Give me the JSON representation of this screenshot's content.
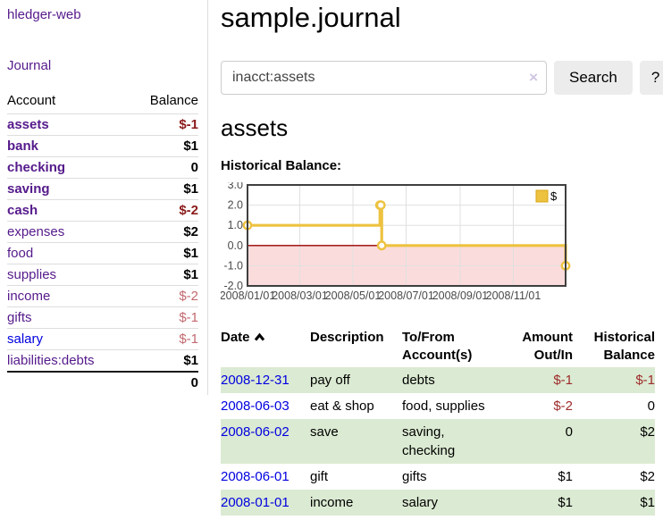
{
  "sidebar": {
    "brand": "hledger-web",
    "nav_journal": "Journal",
    "accounts": {
      "header_account": "Account",
      "header_balance": "Balance",
      "rows": [
        {
          "name": "assets",
          "depth": 1,
          "bold": true,
          "balance": "$-1",
          "balance_class": "neg-bold"
        },
        {
          "name": "bank",
          "depth": 2,
          "bold": true,
          "balance": "$1",
          "balance_class": "pos"
        },
        {
          "name": "checking",
          "depth": 3,
          "bold": true,
          "balance": "0",
          "balance_class": "pos"
        },
        {
          "name": "saving",
          "depth": 3,
          "bold": true,
          "balance": "$1",
          "balance_class": "pos"
        },
        {
          "name": "cash",
          "depth": 2,
          "bold": true,
          "balance": "$-2",
          "balance_class": "neg-bold"
        },
        {
          "name": "expenses",
          "depth": 1,
          "bold": false,
          "balance": "$2",
          "balance_class": "pos"
        },
        {
          "name": "food",
          "depth": 2,
          "bold": false,
          "balance": "$1",
          "balance_class": "pos"
        },
        {
          "name": "supplies",
          "depth": 2,
          "bold": false,
          "balance": "$1",
          "balance_class": "pos"
        },
        {
          "name": "income",
          "depth": 1,
          "bold": false,
          "balance": "$-2",
          "balance_class": "neg-soft"
        },
        {
          "name": "gifts",
          "depth": 2,
          "bold": false,
          "balance": "$-1",
          "balance_class": "neg-soft"
        },
        {
          "name": "salary",
          "depth": 2,
          "bold": false,
          "link_class": "blue",
          "balance": "$-1",
          "balance_class": "neg-soft"
        },
        {
          "name": "liabilities:debts",
          "depth": 1,
          "bold": false,
          "balance": "$1",
          "balance_class": "pos"
        }
      ],
      "total": "0"
    }
  },
  "main": {
    "title": "sample.journal",
    "search": {
      "value": "inacct:assets",
      "clear_label": "×",
      "button_label": "Search",
      "help_label": "?"
    },
    "account_heading": "assets",
    "chart_heading": "Historical Balance:",
    "register": {
      "headers": {
        "date": "Date",
        "description": "Description",
        "accounts": "To/From Account(s)",
        "amount": "Amount Out/In",
        "balance": "Historical Balance"
      },
      "rows": [
        {
          "date": "2008-12-31",
          "description": "pay off",
          "accounts": "debts",
          "amount": "$-1",
          "amount_class": "neg",
          "balance": "$-1",
          "balance_class": "neg"
        },
        {
          "date": "2008-06-03",
          "description": "eat & shop",
          "accounts": "food, supplies",
          "amount": "$-2",
          "amount_class": "neg",
          "balance": "0",
          "balance_class": ""
        },
        {
          "date": "2008-06-02",
          "description": "save",
          "accounts": "saving, checking",
          "amount": "0",
          "amount_class": "",
          "balance": "$2",
          "balance_class": ""
        },
        {
          "date": "2008-06-01",
          "description": "gift",
          "accounts": "gifts",
          "amount": "$1",
          "amount_class": "",
          "balance": "$2",
          "balance_class": ""
        },
        {
          "date": "2008-01-01",
          "description": "income",
          "accounts": "salary",
          "amount": "$1",
          "amount_class": "",
          "balance": "$1",
          "balance_class": ""
        }
      ]
    }
  },
  "chart_data": {
    "type": "line",
    "step": true,
    "title": "Historical Balance:",
    "legend": [
      {
        "label": "$",
        "color": "#EDC240"
      }
    ],
    "legend_position": "top-right",
    "grid": true,
    "x": [
      "2008-01-01",
      "2008-06-01",
      "2008-06-02",
      "2008-06-03",
      "2008-12-31"
    ],
    "values": [
      1,
      2,
      2,
      0,
      -1
    ],
    "ylim": [
      -2,
      3
    ],
    "ytick_labels": [
      "3.0",
      "2.0",
      "1.0",
      "0.0",
      "-1.0",
      "-2.0"
    ],
    "ytick_values": [
      3,
      2,
      1,
      0,
      -1,
      -2
    ],
    "xtick_labels": [
      "2008/01/01",
      "2008/03/01",
      "2008/05/01",
      "2008/07/01",
      "2008/09/01",
      "2008/11/01"
    ],
    "xtick_dates": [
      "2008-01-01",
      "2008-03-01",
      "2008-05-01",
      "2008-07-01",
      "2008-09-01",
      "2008-11-01"
    ],
    "xlim": [
      "2008-01-01",
      "2008-12-31"
    ],
    "colors": {
      "line": "#EDC240",
      "marker_fill": "#FFFFFF",
      "negative_region_fill": "#FBDCDC",
      "zero_line": "#990000",
      "gridline": "#E0E0E0",
      "plot_border": "#3F3F3F",
      "axis_text": "#4A4A4A"
    }
  }
}
